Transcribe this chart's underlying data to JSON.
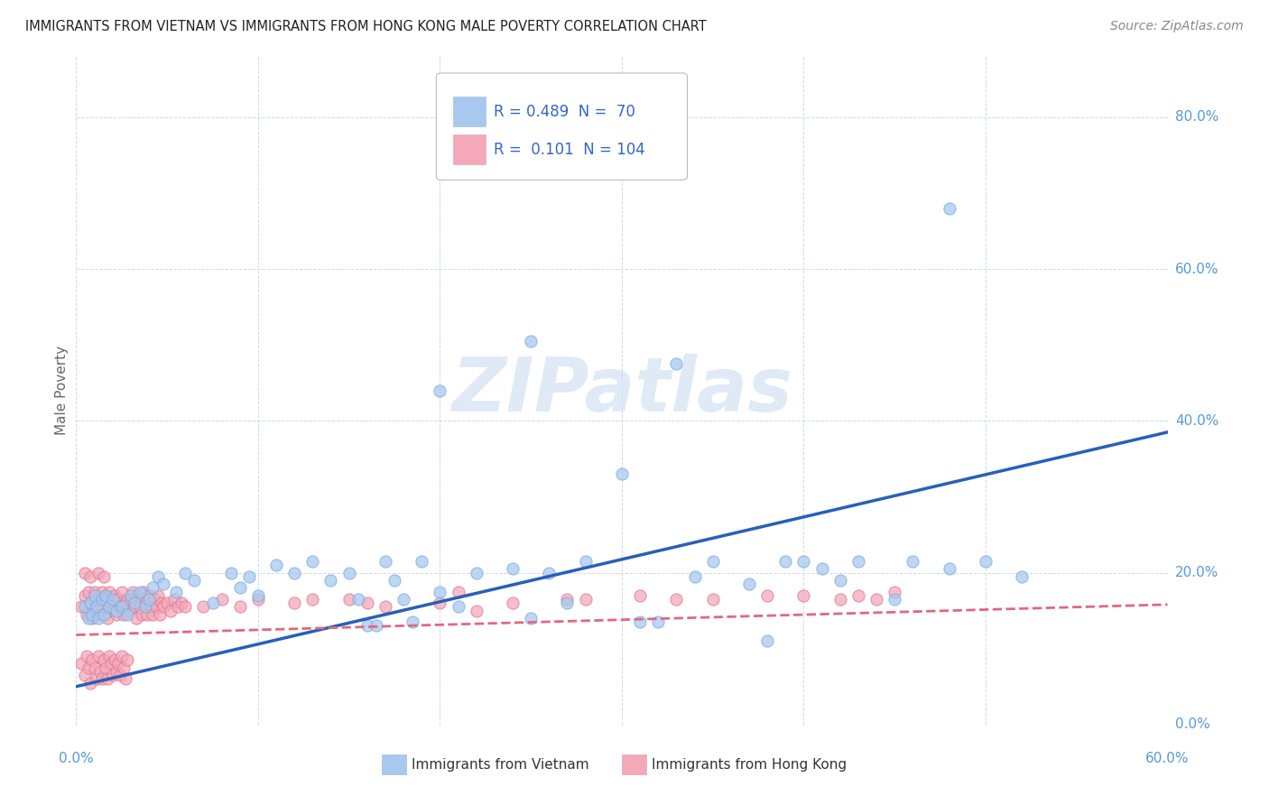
{
  "title": "IMMIGRANTS FROM VIETNAM VS IMMIGRANTS FROM HONG KONG MALE POVERTY CORRELATION CHART",
  "source": "Source: ZipAtlas.com",
  "ylabel": "Male Poverty",
  "xlim": [
    0.0,
    0.6
  ],
  "ylim": [
    0.0,
    0.88
  ],
  "ytick_values": [
    0.0,
    0.2,
    0.4,
    0.6,
    0.8
  ],
  "xtick_values": [
    0.0,
    0.1,
    0.2,
    0.3,
    0.4,
    0.5,
    0.6
  ],
  "legend_r_vietnam": "0.489",
  "legend_n_vietnam": "70",
  "legend_r_hk": "0.101",
  "legend_n_hk": "104",
  "vietnam_color": "#a8c8f0",
  "vietnam_edge_color": "#7aaee0",
  "hk_color": "#f4a8b8",
  "hk_edge_color": "#e07898",
  "vietnam_line_color": "#2860b8",
  "hk_line_color": "#e06880",
  "background_color": "#ffffff",
  "grid_color": "#d0d8e8",
  "watermark": "ZIPatlas",
  "viet_line_x0": 0.0,
  "viet_line_y0": 0.05,
  "viet_line_x1": 0.6,
  "viet_line_y1": 0.385,
  "hk_line_x0": 0.0,
  "hk_line_y0": 0.118,
  "hk_line_x1": 0.6,
  "hk_line_y1": 0.158,
  "viet_scatter_x": [
    0.005,
    0.007,
    0.008,
    0.009,
    0.01,
    0.011,
    0.012,
    0.014,
    0.015,
    0.016,
    0.018,
    0.02,
    0.022,
    0.025,
    0.028,
    0.03,
    0.032,
    0.035,
    0.038,
    0.04,
    0.042,
    0.045,
    0.048,
    0.055,
    0.06,
    0.065,
    0.075,
    0.085,
    0.09,
    0.095,
    0.1,
    0.11,
    0.12,
    0.13,
    0.14,
    0.15,
    0.155,
    0.16,
    0.165,
    0.17,
    0.175,
    0.18,
    0.185,
    0.19,
    0.2,
    0.21,
    0.22,
    0.24,
    0.25,
    0.26,
    0.27,
    0.28,
    0.3,
    0.31,
    0.32,
    0.33,
    0.34,
    0.35,
    0.37,
    0.38,
    0.39,
    0.4,
    0.41,
    0.42,
    0.43,
    0.45,
    0.46,
    0.48,
    0.5,
    0.52
  ],
  "viet_scatter_y": [
    0.155,
    0.14,
    0.16,
    0.145,
    0.17,
    0.155,
    0.14,
    0.165,
    0.145,
    0.17,
    0.155,
    0.165,
    0.15,
    0.155,
    0.145,
    0.17,
    0.16,
    0.175,
    0.155,
    0.165,
    0.18,
    0.195,
    0.185,
    0.175,
    0.2,
    0.19,
    0.16,
    0.2,
    0.18,
    0.195,
    0.17,
    0.21,
    0.2,
    0.215,
    0.19,
    0.2,
    0.165,
    0.13,
    0.13,
    0.215,
    0.19,
    0.165,
    0.135,
    0.215,
    0.175,
    0.155,
    0.2,
    0.205,
    0.14,
    0.2,
    0.16,
    0.215,
    0.33,
    0.135,
    0.135,
    0.475,
    0.195,
    0.215,
    0.185,
    0.11,
    0.215,
    0.215,
    0.205,
    0.19,
    0.215,
    0.165,
    0.215,
    0.205,
    0.215,
    0.195
  ],
  "hk_scatter_x": [
    0.003,
    0.005,
    0.006,
    0.007,
    0.008,
    0.009,
    0.01,
    0.011,
    0.012,
    0.013,
    0.014,
    0.015,
    0.016,
    0.017,
    0.018,
    0.019,
    0.02,
    0.021,
    0.022,
    0.023,
    0.024,
    0.025,
    0.026,
    0.027,
    0.028,
    0.029,
    0.03,
    0.031,
    0.032,
    0.033,
    0.034,
    0.035,
    0.036,
    0.037,
    0.038,
    0.039,
    0.04,
    0.041,
    0.042,
    0.043,
    0.044,
    0.045,
    0.046,
    0.047,
    0.048,
    0.05,
    0.052,
    0.054,
    0.056,
    0.058,
    0.003,
    0.005,
    0.006,
    0.007,
    0.008,
    0.009,
    0.01,
    0.011,
    0.012,
    0.013,
    0.014,
    0.015,
    0.016,
    0.017,
    0.018,
    0.019,
    0.02,
    0.021,
    0.022,
    0.023,
    0.024,
    0.025,
    0.026,
    0.027,
    0.028,
    0.06,
    0.07,
    0.08,
    0.09,
    0.1,
    0.12,
    0.13,
    0.15,
    0.16,
    0.17,
    0.2,
    0.21,
    0.22,
    0.24,
    0.27,
    0.28,
    0.31,
    0.33,
    0.35,
    0.38,
    0.4,
    0.42,
    0.43,
    0.44,
    0.45,
    0.005,
    0.008,
    0.012,
    0.015
  ],
  "hk_scatter_y": [
    0.155,
    0.17,
    0.145,
    0.175,
    0.16,
    0.14,
    0.175,
    0.155,
    0.165,
    0.145,
    0.175,
    0.155,
    0.165,
    0.14,
    0.175,
    0.16,
    0.15,
    0.17,
    0.145,
    0.165,
    0.155,
    0.175,
    0.145,
    0.16,
    0.165,
    0.15,
    0.165,
    0.175,
    0.155,
    0.14,
    0.17,
    0.155,
    0.145,
    0.175,
    0.16,
    0.145,
    0.17,
    0.155,
    0.145,
    0.165,
    0.155,
    0.17,
    0.145,
    0.16,
    0.155,
    0.16,
    0.15,
    0.165,
    0.155,
    0.16,
    0.08,
    0.065,
    0.09,
    0.075,
    0.055,
    0.085,
    0.075,
    0.06,
    0.09,
    0.07,
    0.06,
    0.085,
    0.075,
    0.06,
    0.09,
    0.08,
    0.065,
    0.085,
    0.07,
    0.08,
    0.065,
    0.09,
    0.075,
    0.06,
    0.085,
    0.155,
    0.155,
    0.165,
    0.155,
    0.165,
    0.16,
    0.165,
    0.165,
    0.16,
    0.155,
    0.16,
    0.175,
    0.15,
    0.16,
    0.165,
    0.165,
    0.17,
    0.165,
    0.165,
    0.17,
    0.17,
    0.165,
    0.17,
    0.165,
    0.175,
    0.2,
    0.195,
    0.2,
    0.195
  ]
}
